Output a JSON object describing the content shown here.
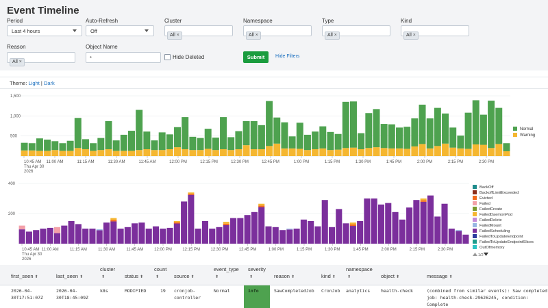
{
  "page": {
    "title": "Event Timeline"
  },
  "filters": {
    "period": {
      "label": "Period",
      "value": "Last 4 hours"
    },
    "auto_refresh": {
      "label": "Auto-Refresh",
      "value": "Off"
    },
    "cluster": {
      "label": "Cluster",
      "chip": "All"
    },
    "namespace": {
      "label": "Namespace",
      "chip": "All"
    },
    "type": {
      "label": "Type",
      "chip": "All"
    },
    "kind": {
      "label": "Kind",
      "chip": "All"
    },
    "reason": {
      "label": "Reason",
      "chip": "All"
    },
    "object_name": {
      "label": "Object Name",
      "value": "*"
    },
    "hide_deleted": {
      "label": "Hide Deleted",
      "checked": false
    },
    "submit_label": "Submit",
    "hide_filters_label": "Hide Filters"
  },
  "theme": {
    "prefix": "Theme:",
    "light": "Light",
    "sep": "|",
    "dark": "Dark"
  },
  "chart_data": [
    {
      "type": "bar",
      "stacked": true,
      "ylim": [
        0,
        1500
      ],
      "yticks": [
        "500",
        "1,000",
        "1,500"
      ],
      "xticks": [
        "10:45 AM",
        "11:00 AM",
        "11:15 AM",
        "11:30 AM",
        "11:45 AM",
        "12:00 PM",
        "12:15 PM",
        "12:30 PM",
        "12:45 PM",
        "1:00 PM",
        "1:15 PM",
        "1:30 PM",
        "1:45 PM",
        "2:00 PM",
        "2:15 PM",
        "2:30 PM"
      ],
      "xtick_sub": [
        "Thu Apr 30",
        "2026"
      ],
      "legend_position": "right",
      "series": [
        {
          "name": "Normal",
          "color": "#4ea24f",
          "values": [
            190,
            180,
            310,
            280,
            220,
            190,
            250,
            750,
            250,
            190,
            300,
            700,
            260,
            400,
            500,
            1000,
            440,
            240,
            440,
            370,
            500,
            800,
            330,
            300,
            500,
            310,
            800,
            320,
            450,
            600,
            700,
            600,
            1120,
            650,
            650,
            300,
            650,
            380,
            440,
            550,
            450,
            390,
            1150,
            1150,
            400,
            870,
            950,
            600,
            600,
            520,
            550,
            700,
            980,
            750,
            950,
            750,
            500,
            320,
            900,
            1100,
            750,
            1180,
            900,
            200
          ]
        },
        {
          "name": "Warning",
          "color": "#f5b731",
          "values": [
            140,
            140,
            130,
            130,
            150,
            130,
            130,
            200,
            170,
            130,
            150,
            170,
            130,
            130,
            130,
            150,
            170,
            150,
            150,
            170,
            220,
            170,
            150,
            150,
            180,
            150,
            170,
            150,
            170,
            270,
            170,
            170,
            250,
            310,
            190,
            190,
            180,
            150,
            170,
            190,
            150,
            160,
            200,
            210,
            170,
            200,
            220,
            200,
            190,
            190,
            180,
            240,
            300,
            190,
            250,
            310,
            210,
            190,
            180,
            290,
            280,
            200,
            300,
            120
          ]
        }
      ]
    },
    {
      "type": "bar",
      "stacked": true,
      "ylim": [
        0,
        400
      ],
      "yticks": [
        "200",
        "400"
      ],
      "xticks": [
        "10:45 AM",
        "11:00 AM",
        "11:15 AM",
        "11:30 AM",
        "11:45 AM",
        "12:00 PM",
        "12:15 PM",
        "12:30 PM",
        "12:45 PM",
        "1:00 PM",
        "1:15 PM",
        "1:30 PM",
        "1:45 PM",
        "2:00 PM",
        "2:15 PM",
        "2:30 PM"
      ],
      "xtick_sub": [
        "Thu Apr 30",
        "2026"
      ],
      "legend_position": "right",
      "legend_page": "1/2",
      "series": [
        {
          "name": "BackOff",
          "color": "#1e8c8c",
          "values": []
        },
        {
          "name": "BackoffLimitExceeded",
          "color": "#8c2d1a",
          "values": []
        },
        {
          "name": "Evicted",
          "color": "#f26a1b",
          "values": []
        },
        {
          "name": "Failed",
          "color": "#f3a0a8",
          "values": []
        },
        {
          "name": "FailedCreate",
          "color": "#7a9a2e",
          "values": []
        },
        {
          "name": "FailedDaemonPod",
          "color": "#f5b731",
          "values": []
        },
        {
          "name": "FailedDelete",
          "color": "#c48ad8",
          "values": []
        },
        {
          "name": "FailedMount",
          "color": "#98b6e3",
          "values": []
        },
        {
          "name": "FailedScheduling",
          "color": "#7b2f9c",
          "values": []
        },
        {
          "name": "FailedToUpdateEndpoint",
          "color": "#2d3c9e",
          "values": []
        },
        {
          "name": "FailedToUpdateEndpointSlices",
          "color": "#1a9c8c",
          "values": []
        },
        {
          "name": "OutOfmemory",
          "color": "#2cc4c4",
          "values": []
        }
      ],
      "totals": [
        120,
        80,
        90,
        100,
        105,
        110,
        120,
        150,
        130,
        100,
        100,
        95,
        140,
        170,
        100,
        110,
        135,
        140,
        100,
        115,
        100,
        105,
        150,
        280,
        340,
        100,
        150,
        100,
        110,
        145,
        170,
        170,
        190,
        210,
        265,
        115,
        110,
        90,
        100,
        100,
        160,
        150,
        115,
        290,
        110,
        230,
        135,
        140,
        150,
        300,
        300,
        260,
        270,
        210,
        160,
        240,
        290,
        300,
        320,
        180,
        265,
        100,
        90,
        60
      ]
    }
  ],
  "table": {
    "columns": [
      "first_seen",
      "last_seen",
      "cluster",
      "status",
      "count",
      "source",
      "event_type",
      "severity",
      "reason",
      "kind",
      "namespace",
      "object",
      "message"
    ],
    "rows": [
      {
        "first_seen": [
          "2026-04-",
          "30T17:51:07Z"
        ],
        "last_seen": [
          "2026-04-",
          "30T18:45:09Z"
        ],
        "cluster": "k8s",
        "status": "MODIFIED",
        "count": "19",
        "source": [
          "cronjob-",
          "controller"
        ],
        "event_type": "Normal",
        "severity": "info",
        "severity_color": "#4ea24f",
        "reason": "SawCompletedJob",
        "kind": "CronJob",
        "namespace": "analytics",
        "object": "health-check",
        "message": [
          "(combined from similar events): Saw completed",
          "job: health-check-29626245, condition:",
          "Complete"
        ]
      }
    ]
  }
}
